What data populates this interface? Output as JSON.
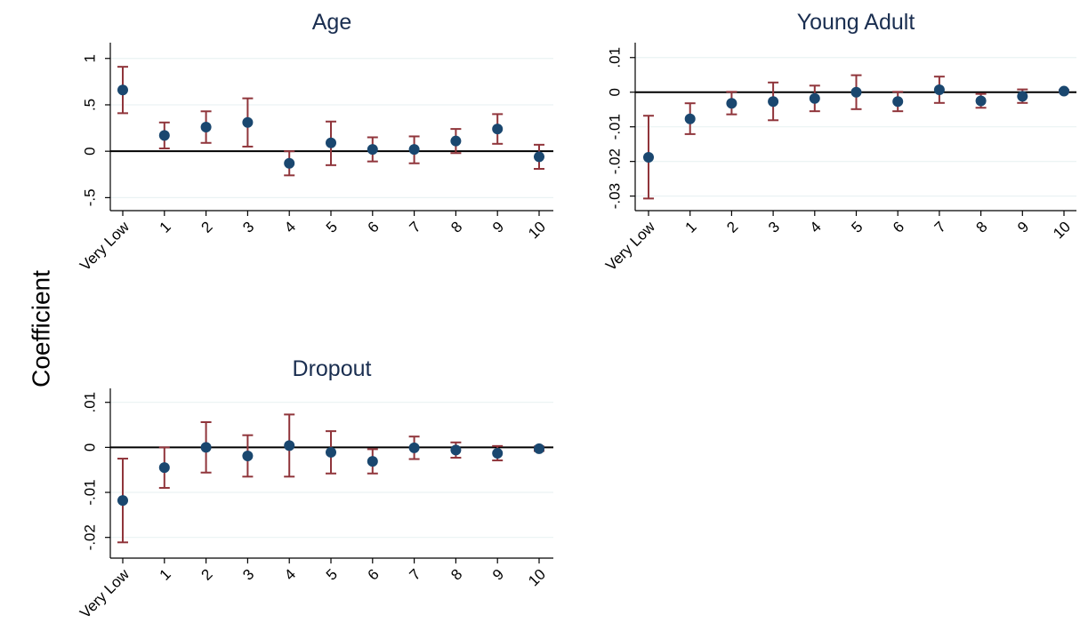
{
  "y_axis_label": "Coefficient",
  "colors": {
    "marker": "#1a476f",
    "ci": "#90353b",
    "grid": "#eaf2f3",
    "title": "#1a2e50",
    "zero_line": "#000000"
  },
  "chart_data": [
    {
      "type": "scatter",
      "title": "Age",
      "categories": [
        "Very Low",
        "1",
        "2",
        "3",
        "4",
        "5",
        "6",
        "7",
        "8",
        "9",
        "10"
      ],
      "values": [
        0.66,
        0.17,
        0.26,
        0.31,
        -0.13,
        0.09,
        0.02,
        0.02,
        0.11,
        0.24,
        -0.06
      ],
      "ci_low": [
        0.41,
        0.03,
        0.09,
        0.05,
        -0.26,
        -0.15,
        -0.11,
        -0.13,
        -0.02,
        0.08,
        -0.19
      ],
      "ci_high": [
        0.91,
        0.31,
        0.43,
        0.57,
        0.0,
        0.32,
        0.15,
        0.16,
        0.24,
        0.4,
        0.07
      ],
      "yticks": [
        "-.5",
        "0",
        ".5",
        "1"
      ],
      "ytick_values": [
        -0.5,
        0,
        0.5,
        1
      ],
      "ylim": [
        -0.64,
        1.17
      ],
      "zero_line": true,
      "grid": true
    },
    {
      "type": "scatter",
      "title": "Young Adult",
      "categories": [
        "Very Low",
        "1",
        "2",
        "3",
        "4",
        "5",
        "6",
        "7",
        "8",
        "9",
        "10"
      ],
      "values": [
        -0.0188,
        -0.0077,
        -0.0032,
        -0.0027,
        -0.0018,
        0.0,
        -0.0027,
        0.0007,
        -0.0025,
        -0.0012,
        0.0003
      ],
      "ci_low": [
        -0.0307,
        -0.0121,
        -0.0064,
        -0.0081,
        -0.0055,
        -0.0049,
        -0.0055,
        -0.0031,
        -0.0045,
        -0.0031,
        0.0
      ],
      "ci_high": [
        -0.0068,
        -0.0032,
        0.0001,
        0.0028,
        0.0019,
        0.0049,
        0.0001,
        0.0045,
        -0.0005,
        0.0008,
        0.0006
      ],
      "yticks": [
        "-.03",
        "-.02",
        "-.01",
        "0",
        ".01"
      ],
      "ytick_values": [
        -0.03,
        -0.02,
        -0.01,
        0,
        0.01
      ],
      "ylim": [
        -0.0342,
        0.0143
      ],
      "zero_line": true,
      "grid": true
    },
    {
      "type": "scatter",
      "title": "Dropout",
      "categories": [
        "Very Low",
        "1",
        "2",
        "3",
        "4",
        "5",
        "6",
        "7",
        "8",
        "9",
        "10"
      ],
      "values": [
        -0.0118,
        -0.0045,
        0.0,
        -0.0019,
        0.0004,
        -0.0011,
        -0.0031,
        -0.0001,
        -0.0006,
        -0.0013,
        -0.0003
      ],
      "ci_low": [
        -0.0211,
        -0.009,
        -0.0056,
        -0.0065,
        -0.0065,
        -0.0058,
        -0.0058,
        -0.0026,
        -0.0023,
        -0.0029,
        -0.0008
      ],
      "ci_high": [
        -0.0025,
        0.0,
        0.0056,
        0.0027,
        0.0073,
        0.0036,
        -0.0004,
        0.0024,
        0.0011,
        0.0003,
        0.0002
      ],
      "yticks": [
        "-.02",
        "-.01",
        "0",
        ".01"
      ],
      "ytick_values": [
        -0.02,
        -0.01,
        0,
        0.01
      ],
      "ylim": [
        -0.0246,
        0.0131
      ],
      "zero_line": true,
      "grid": true
    }
  ]
}
